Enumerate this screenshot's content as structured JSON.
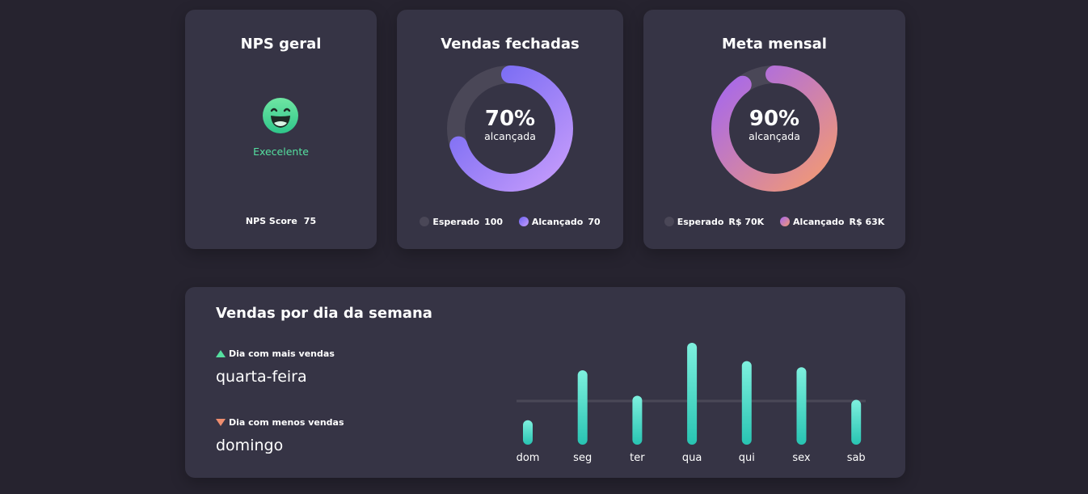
{
  "nps": {
    "title": "NPS geral",
    "status": "Execelente",
    "score_label": "NPS Score",
    "score_value": "75",
    "face_icon": "smiling-face-icon",
    "status_color": "#55e0a0"
  },
  "vendas_fechadas": {
    "title": "Vendas fechadas",
    "percent": "70%",
    "sub": "alcançada",
    "progress": 0.7,
    "legend": [
      {
        "label": "Esperado",
        "value": "100",
        "color": "#4a4757"
      },
      {
        "label": "Alcançado",
        "value": "70",
        "color": "#8b7ff3"
      }
    ]
  },
  "meta_mensal": {
    "title": "Meta mensal",
    "percent": "90%",
    "sub": "alcançada",
    "progress": 0.9,
    "legend": [
      {
        "label": "Esperado",
        "value": "R$ 70K",
        "color": "#4a4757"
      },
      {
        "label": "Alcançado",
        "value": "R$ 63K",
        "color": "#c27fb8"
      }
    ]
  },
  "semana": {
    "title": "Vendas por dia da semana",
    "mais_label": "Dia com mais vendas",
    "mais_value": "quarta-feira",
    "menos_label": "Dia com menos vendas",
    "menos_value": "domingo"
  },
  "chart_data": {
    "type": "bar",
    "categories": [
      "dom",
      "seg",
      "ter",
      "qua",
      "qui",
      "sex",
      "sab"
    ],
    "values": [
      24,
      73,
      48,
      100,
      82,
      76,
      44
    ],
    "reference_line": 44,
    "ylim": [
      0,
      100
    ],
    "colors": {
      "top": "#7ef0de",
      "bottom": "#28c4b2",
      "reference": "#4a4857"
    }
  }
}
